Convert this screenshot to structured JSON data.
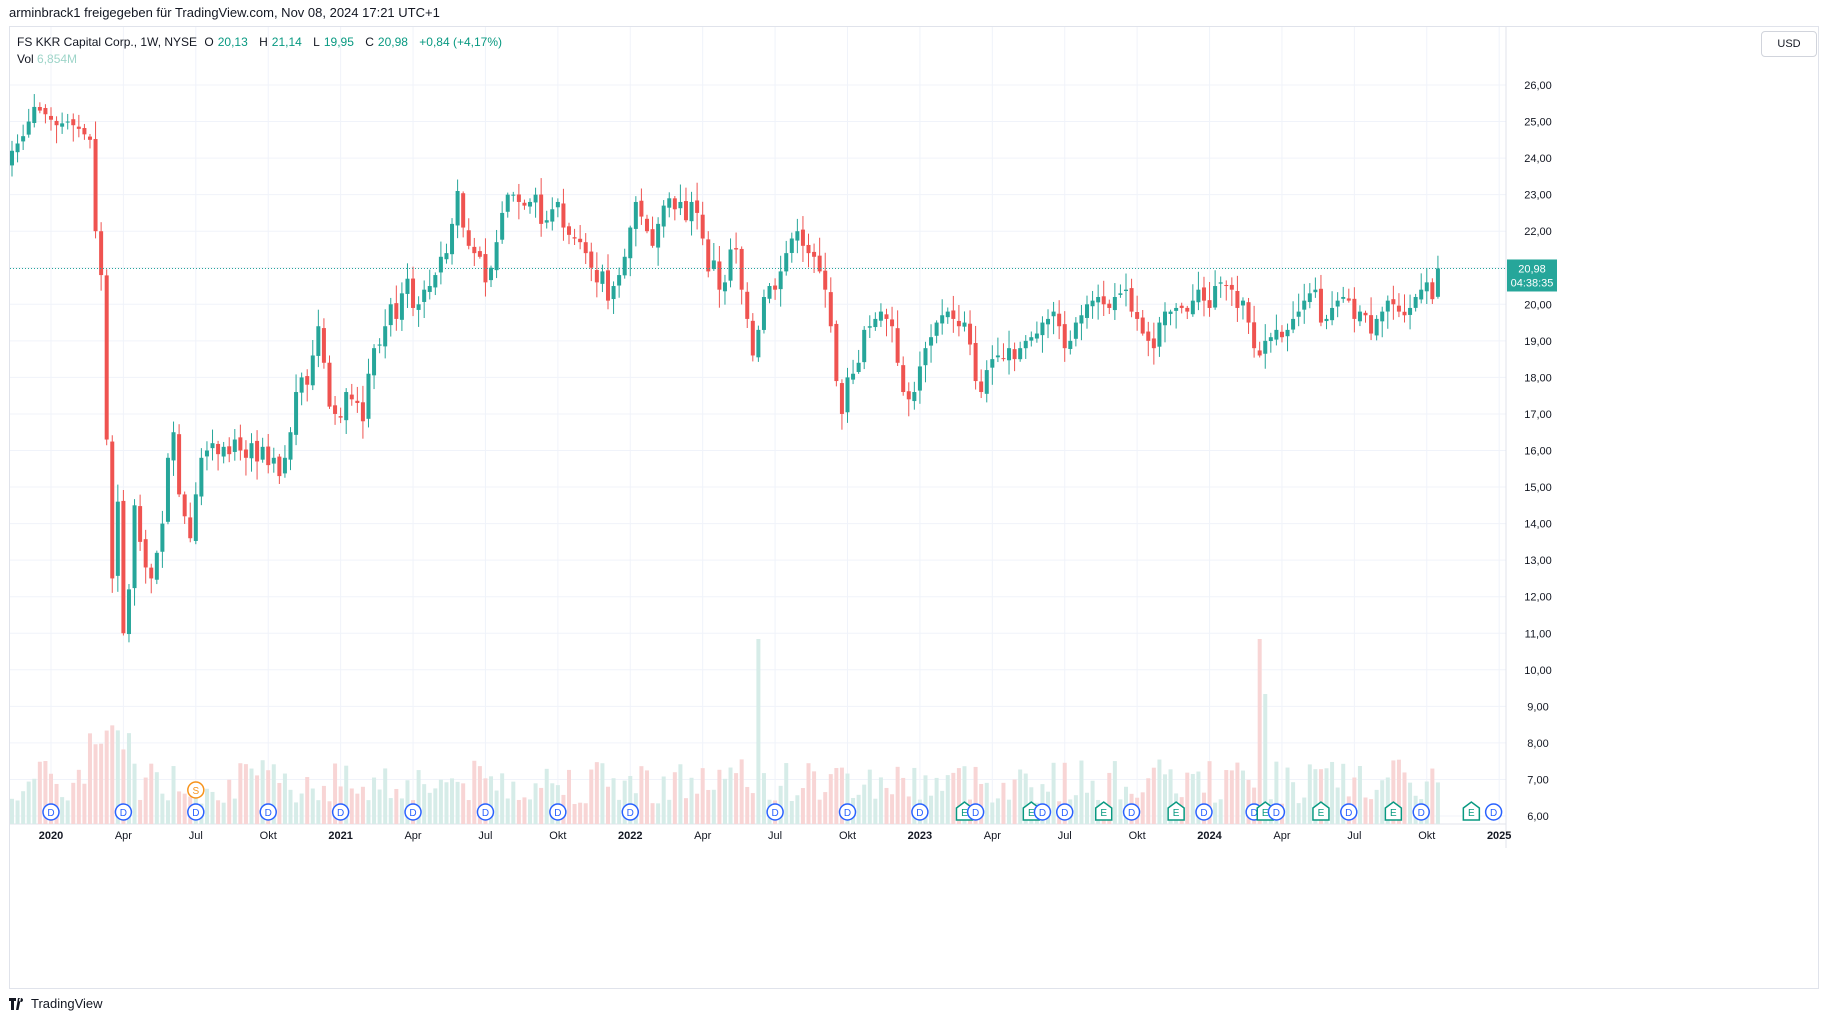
{
  "share_line": "arminbrack1 freigegeben für TradingView.com, Nov 08, 2024 17:21 UTC+1",
  "legend": {
    "symbol": "FS KKR Capital Corp., 1W, NYSE",
    "o_label": "O",
    "o_value": "20,13",
    "h_label": "H",
    "h_value": "21,14",
    "l_label": "L",
    "l_value": "19,95",
    "c_label": "C",
    "c_value": "20,98",
    "change": "+0,84 (+4,17%)",
    "vol_label": "Vol",
    "vol_value": "6,854M"
  },
  "currency": "USD",
  "last_price": {
    "value": "20,98",
    "countdown": "04:38:35"
  },
  "footer_brand": "TradingView",
  "colors": {
    "up": "#26a69a",
    "down": "#ef5350",
    "up_vol": "#d6ece8",
    "down_vol": "#f8d5d5",
    "grid": "#f0f3fa",
    "event_blue": "#2962ff",
    "event_green": "#089981",
    "event_orange": "#f7931a"
  },
  "chart_data": {
    "type": "candlestick",
    "interval": "1W",
    "exchange": "NYSE",
    "y_axis": {
      "side": "right",
      "ylim": [
        6,
        27
      ],
      "ticks": [
        "6,00",
        "7,00",
        "8,00",
        "9,00",
        "10,00",
        "11,00",
        "12,00",
        "13,00",
        "14,00",
        "15,00",
        "16,00",
        "17,00",
        "18,00",
        "19,00",
        "20,00",
        "21,00",
        "22,00",
        "23,00",
        "24,00",
        "25,00",
        "26,00"
      ]
    },
    "x_axis": {
      "ticks": [
        {
          "label": "2020",
          "week": 7,
          "bold": true
        },
        {
          "label": "Apr",
          "week": 20
        },
        {
          "label": "Jul",
          "week": 33
        },
        {
          "label": "Okt",
          "week": 46
        },
        {
          "label": "2021",
          "week": 59,
          "bold": true
        },
        {
          "label": "Apr",
          "week": 72
        },
        {
          "label": "Jul",
          "week": 85
        },
        {
          "label": "Okt",
          "week": 98
        },
        {
          "label": "2022",
          "week": 111,
          "bold": true
        },
        {
          "label": "Apr",
          "week": 124
        },
        {
          "label": "Jul",
          "week": 137
        },
        {
          "label": "Okt",
          "week": 150
        },
        {
          "label": "2023",
          "week": 163,
          "bold": true
        },
        {
          "label": "Apr",
          "week": 176
        },
        {
          "label": "Jul",
          "week": 189
        },
        {
          "label": "Okt",
          "week": 202
        },
        {
          "label": "2024",
          "week": 215,
          "bold": true
        },
        {
          "label": "Apr",
          "week": 228
        },
        {
          "label": "Jul",
          "week": 241
        },
        {
          "label": "Okt",
          "week": 254
        },
        {
          "label": "2025",
          "week": 267,
          "bold": true
        }
      ]
    },
    "close_anchors": [
      [
        0,
        24.2
      ],
      [
        2,
        24.6
      ],
      [
        4,
        25.4
      ],
      [
        6,
        25.2
      ],
      [
        8,
        24.9
      ],
      [
        10,
        25.0
      ],
      [
        12,
        24.8
      ],
      [
        14,
        24.5
      ],
      [
        15,
        22.0
      ],
      [
        16,
        20.8
      ],
      [
        17,
        16.3
      ],
      [
        18,
        12.5
      ],
      [
        19,
        14.6
      ],
      [
        20,
        11.0
      ],
      [
        21,
        12.2
      ],
      [
        22,
        14.5
      ],
      [
        23,
        13.5
      ],
      [
        24,
        12.8
      ],
      [
        25,
        12.5
      ],
      [
        26,
        13.2
      ],
      [
        27,
        14.0
      ],
      [
        28,
        15.8
      ],
      [
        29,
        16.5
      ],
      [
        30,
        14.8
      ],
      [
        31,
        14.2
      ],
      [
        32,
        13.6
      ],
      [
        33,
        14.8
      ],
      [
        34,
        15.8
      ],
      [
        35,
        16.0
      ],
      [
        36,
        16.2
      ],
      [
        37,
        15.9
      ],
      [
        38,
        16.1
      ],
      [
        39,
        15.9
      ],
      [
        40,
        16.3
      ],
      [
        41,
        16.0
      ],
      [
        42,
        15.8
      ],
      [
        43,
        16.2
      ],
      [
        44,
        15.7
      ],
      [
        45,
        16.1
      ],
      [
        46,
        15.6
      ],
      [
        47,
        15.8
      ],
      [
        48,
        15.3
      ],
      [
        49,
        15.8
      ],
      [
        50,
        16.5
      ],
      [
        51,
        17.6
      ],
      [
        52,
        18.0
      ],
      [
        53,
        17.8
      ],
      [
        54,
        18.6
      ],
      [
        55,
        19.4
      ],
      [
        56,
        18.4
      ],
      [
        57,
        17.2
      ],
      [
        58,
        17.0
      ],
      [
        59,
        16.9
      ],
      [
        60,
        17.6
      ],
      [
        61,
        17.4
      ],
      [
        62,
        17.3
      ],
      [
        63,
        16.8
      ],
      [
        64,
        18.1
      ],
      [
        65,
        18.8
      ],
      [
        66,
        18.9
      ],
      [
        67,
        19.4
      ],
      [
        68,
        20.0
      ],
      [
        69,
        19.6
      ],
      [
        70,
        20.3
      ],
      [
        71,
        20.7
      ],
      [
        72,
        19.9
      ],
      [
        73,
        20.0
      ],
      [
        74,
        20.4
      ],
      [
        75,
        20.5
      ],
      [
        76,
        20.8
      ],
      [
        77,
        21.3
      ],
      [
        78,
        21.4
      ],
      [
        79,
        22.2
      ],
      [
        80,
        23.1
      ],
      [
        81,
        22.1
      ],
      [
        82,
        21.6
      ],
      [
        83,
        21.4
      ],
      [
        84,
        21.3
      ],
      [
        85,
        20.6
      ],
      [
        86,
        21.0
      ],
      [
        87,
        21.7
      ],
      [
        88,
        22.5
      ],
      [
        89,
        23.0
      ],
      [
        90,
        23.0
      ],
      [
        91,
        22.8
      ],
      [
        92,
        22.7
      ],
      [
        93,
        22.8
      ],
      [
        94,
        23.0
      ],
      [
        95,
        22.2
      ],
      [
        96,
        22.3
      ],
      [
        97,
        22.6
      ],
      [
        98,
        22.8
      ],
      [
        99,
        22.1
      ],
      [
        100,
        21.9
      ],
      [
        101,
        21.8
      ],
      [
        102,
        21.7
      ],
      [
        103,
        21.4
      ],
      [
        104,
        21.0
      ],
      [
        105,
        20.6
      ],
      [
        106,
        20.9
      ],
      [
        107,
        20.1
      ],
      [
        108,
        20.5
      ],
      [
        109,
        20.8
      ],
      [
        110,
        21.3
      ],
      [
        111,
        22.1
      ],
      [
        112,
        22.8
      ],
      [
        113,
        22.4
      ],
      [
        114,
        22.0
      ],
      [
        115,
        21.6
      ],
      [
        116,
        22.2
      ],
      [
        117,
        22.7
      ],
      [
        118,
        22.9
      ],
      [
        119,
        22.6
      ],
      [
        120,
        22.8
      ],
      [
        121,
        22.3
      ],
      [
        122,
        22.8
      ],
      [
        123,
        22.5
      ],
      [
        124,
        21.8
      ],
      [
        125,
        20.9
      ],
      [
        126,
        21.2
      ],
      [
        127,
        20.4
      ],
      [
        128,
        20.6
      ],
      [
        129,
        21.5
      ],
      [
        130,
        21.5
      ],
      [
        131,
        20.4
      ],
      [
        132,
        19.6
      ],
      [
        133,
        18.6
      ],
      [
        134,
        19.3
      ],
      [
        135,
        20.2
      ],
      [
        136,
        20.5
      ],
      [
        137,
        20.4
      ],
      [
        138,
        20.9
      ],
      [
        139,
        21.4
      ],
      [
        140,
        21.8
      ],
      [
        141,
        22.0
      ],
      [
        142,
        21.6
      ],
      [
        143,
        21.4
      ],
      [
        144,
        21.3
      ],
      [
        145,
        20.9
      ],
      [
        146,
        20.4
      ],
      [
        147,
        19.4
      ],
      [
        148,
        17.9
      ],
      [
        149,
        17.0
      ],
      [
        150,
        18.0
      ],
      [
        151,
        18.1
      ],
      [
        152,
        18.4
      ],
      [
        153,
        19.3
      ],
      [
        154,
        19.4
      ],
      [
        155,
        19.6
      ],
      [
        156,
        19.8
      ],
      [
        157,
        19.6
      ],
      [
        158,
        19.4
      ],
      [
        159,
        18.4
      ],
      [
        160,
        17.6
      ],
      [
        161,
        17.4
      ],
      [
        162,
        17.6
      ],
      [
        163,
        18.3
      ],
      [
        164,
        18.8
      ],
      [
        165,
        19.1
      ],
      [
        166,
        19.5
      ],
      [
        167,
        19.7
      ],
      [
        168,
        19.8
      ],
      [
        169,
        19.6
      ],
      [
        170,
        19.4
      ],
      [
        171,
        19.5
      ],
      [
        172,
        18.9
      ],
      [
        173,
        17.9
      ],
      [
        174,
        17.6
      ],
      [
        175,
        18.2
      ],
      [
        176,
        18.5
      ],
      [
        177,
        18.6
      ],
      [
        178,
        18.5
      ],
      [
        179,
        18.8
      ],
      [
        180,
        18.5
      ],
      [
        181,
        18.8
      ],
      [
        182,
        19.0
      ],
      [
        183,
        19.1
      ],
      [
        184,
        19.2
      ],
      [
        185,
        19.5
      ],
      [
        186,
        19.6
      ],
      [
        187,
        19.8
      ],
      [
        188,
        19.4
      ],
      [
        189,
        18.8
      ],
      [
        190,
        19.0
      ],
      [
        191,
        19.5
      ],
      [
        192,
        19.7
      ],
      [
        193,
        20.0
      ],
      [
        194,
        20.1
      ],
      [
        195,
        20.2
      ],
      [
        196,
        20.0
      ],
      [
        197,
        19.9
      ],
      [
        198,
        20.2
      ],
      [
        199,
        20.3
      ],
      [
        200,
        20.4
      ],
      [
        201,
        19.8
      ],
      [
        202,
        19.6
      ],
      [
        203,
        19.2
      ],
      [
        204,
        19.0
      ],
      [
        205,
        18.8
      ],
      [
        206,
        19.5
      ],
      [
        207,
        19.8
      ],
      [
        208,
        19.8
      ],
      [
        209,
        19.9
      ],
      [
        210,
        19.9
      ],
      [
        211,
        19.8
      ],
      [
        212,
        20.1
      ],
      [
        213,
        20.4
      ],
      [
        214,
        20.1
      ],
      [
        215,
        19.9
      ],
      [
        216,
        20.5
      ],
      [
        217,
        20.6
      ],
      [
        218,
        20.5
      ],
      [
        219,
        20.4
      ],
      [
        220,
        19.9
      ],
      [
        221,
        20.1
      ],
      [
        222,
        19.5
      ],
      [
        223,
        18.8
      ],
      [
        224,
        18.6
      ],
      [
        225,
        19.0
      ],
      [
        226,
        19.1
      ],
      [
        227,
        19.3
      ],
      [
        228,
        19.1
      ],
      [
        229,
        19.3
      ],
      [
        230,
        19.6
      ],
      [
        231,
        19.8
      ],
      [
        232,
        20.1
      ],
      [
        233,
        20.3
      ],
      [
        234,
        20.4
      ],
      [
        235,
        19.5
      ],
      [
        236,
        19.6
      ],
      [
        237,
        19.9
      ],
      [
        238,
        20.1
      ],
      [
        239,
        20.2
      ],
      [
        240,
        20.1
      ],
      [
        241,
        19.6
      ],
      [
        242,
        19.8
      ],
      [
        243,
        19.7
      ],
      [
        244,
        19.2
      ],
      [
        245,
        19.6
      ],
      [
        246,
        19.8
      ],
      [
        247,
        20.1
      ],
      [
        248,
        20.0
      ],
      [
        249,
        19.8
      ],
      [
        250,
        19.7
      ],
      [
        251,
        19.9
      ],
      [
        252,
        20.2
      ],
      [
        253,
        20.4
      ],
      [
        254,
        20.6
      ],
      [
        255,
        20.14
      ],
      [
        256,
        20.98
      ]
    ],
    "last_close": 20.98,
    "events": [
      {
        "type": "D",
        "week": 7
      },
      {
        "type": "D",
        "week": 20
      },
      {
        "type": "D",
        "week": 33
      },
      {
        "type": "S",
        "week": 33
      },
      {
        "type": "D",
        "week": 46
      },
      {
        "type": "D",
        "week": 59
      },
      {
        "type": "D",
        "week": 72
      },
      {
        "type": "D",
        "week": 85
      },
      {
        "type": "D",
        "week": 98
      },
      {
        "type": "D",
        "week": 111
      },
      {
        "type": "D",
        "week": 137
      },
      {
        "type": "D",
        "week": 150
      },
      {
        "type": "D",
        "week": 163
      },
      {
        "type": "E",
        "week": 171
      },
      {
        "type": "D",
        "week": 173
      },
      {
        "type": "E",
        "week": 183
      },
      {
        "type": "D",
        "week": 185
      },
      {
        "type": "D",
        "week": 189
      },
      {
        "type": "E",
        "week": 196
      },
      {
        "type": "D",
        "week": 201
      },
      {
        "type": "E",
        "week": 209
      },
      {
        "type": "D",
        "week": 214
      },
      {
        "type": "D",
        "week": 223
      },
      {
        "type": "E",
        "week": 225
      },
      {
        "type": "D",
        "week": 227
      },
      {
        "type": "E",
        "week": 235
      },
      {
        "type": "D",
        "week": 240
      },
      {
        "type": "E",
        "week": 248
      },
      {
        "type": "D",
        "week": 253
      },
      {
        "type": "E",
        "week": 262
      },
      {
        "type": "D",
        "week": 266
      }
    ]
  }
}
